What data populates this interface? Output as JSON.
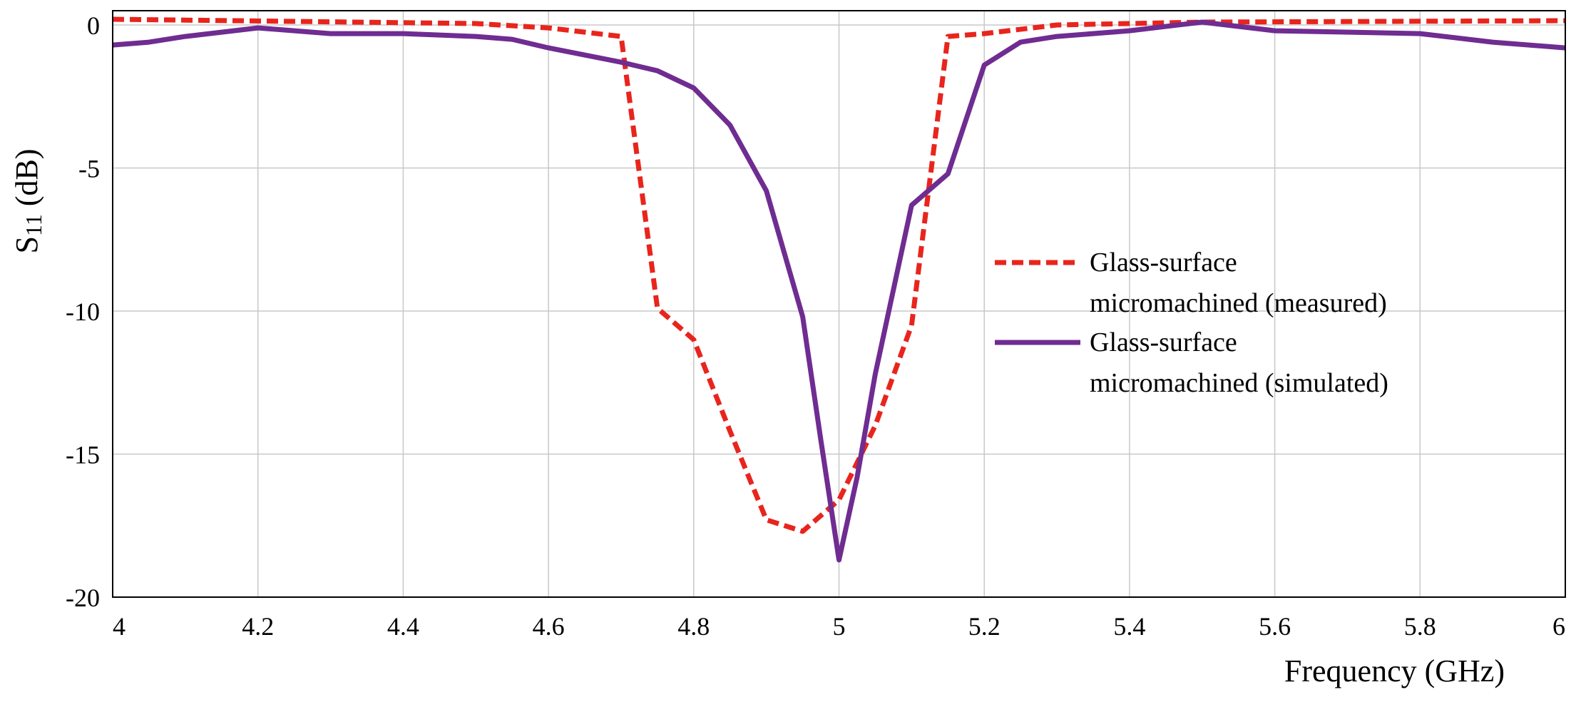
{
  "chart_data": {
    "type": "line",
    "xlabel": "Frequency (GHz)",
    "ylabel": "S11 (dB)",
    "ylabel_parts": {
      "main": "S",
      "subscript": "11",
      "unit": " (dB)"
    },
    "xlim": [
      4,
      6
    ],
    "ylim": [
      -20,
      0.5
    ],
    "x_ticks": [
      4,
      4.2,
      4.4,
      4.6,
      4.8,
      5,
      5.2,
      5.4,
      5.6,
      5.8,
      6
    ],
    "x_tick_labels": [
      "4",
      "4.2",
      "4.4",
      "4.6",
      "4.8",
      "5",
      "5.2",
      "5.4",
      "5.6",
      "5.8",
      "6"
    ],
    "y_ticks": [
      0,
      -5,
      -10,
      -15,
      -20
    ],
    "y_tick_labels": [
      "0",
      "-5",
      "-10",
      "-15",
      "-20"
    ],
    "grid": true,
    "legend_position": "right",
    "series": [
      {
        "name": "Glass-surface micromachined (measured)",
        "legend_lines": [
          "Glass-surface",
          "micromachined (measured)"
        ],
        "color": "#e8251d",
        "style": "dashed",
        "x": [
          4.0,
          4.5,
          4.6,
          4.7,
          4.75,
          4.8,
          4.85,
          4.9,
          4.95,
          5.0,
          5.05,
          5.1,
          5.15,
          5.2,
          5.3,
          5.5,
          6.0
        ],
        "y": [
          0.2,
          0.05,
          -0.1,
          -0.4,
          -9.9,
          -11.0,
          -14.2,
          -17.3,
          -17.7,
          -16.6,
          -14.0,
          -10.5,
          -0.4,
          -0.3,
          0.0,
          0.1,
          0.15
        ]
      },
      {
        "name": "Glass-surface micromachined (simulated)",
        "legend_lines": [
          "Glass-surface",
          "micromachined (simulated)"
        ],
        "color": "#6f2c91",
        "style": "solid",
        "x": [
          4.0,
          4.05,
          4.1,
          4.2,
          4.3,
          4.4,
          4.5,
          4.55,
          4.6,
          4.7,
          4.75,
          4.8,
          4.85,
          4.9,
          4.95,
          4.975,
          5.0,
          5.025,
          5.05,
          5.1,
          5.15,
          5.2,
          5.25,
          5.3,
          5.4,
          5.5,
          5.6,
          5.8,
          5.9,
          6.0
        ],
        "y": [
          -0.7,
          -0.6,
          -0.4,
          -0.1,
          -0.3,
          -0.3,
          -0.4,
          -0.5,
          -0.8,
          -1.3,
          -1.6,
          -2.2,
          -3.5,
          -5.8,
          -10.2,
          -14.5,
          -18.7,
          -15.8,
          -12.2,
          -6.3,
          -5.2,
          -1.4,
          -0.6,
          -0.4,
          -0.2,
          0.1,
          -0.2,
          -0.3,
          -0.6,
          -0.8
        ]
      }
    ]
  }
}
